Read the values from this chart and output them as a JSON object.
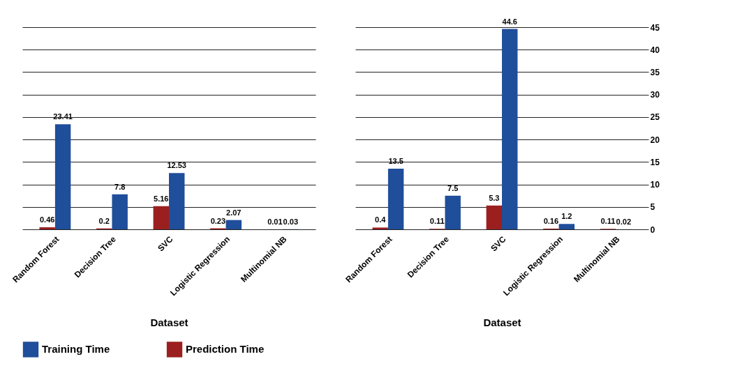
{
  "chart_data": [
    {
      "type": "bar",
      "xlabel": "Dataset",
      "categories": [
        "Random Forest",
        "Decision Tree",
        "SVC",
        "Logistic Regression",
        "Multinomial NB"
      ],
      "series": [
        {
          "name": "Training Time",
          "color": "#1f4e9a",
          "values": [
            23.41,
            7.8,
            12.53,
            2.07,
            0.03
          ]
        },
        {
          "name": "Prediction Time",
          "color": "#9c1f1f",
          "values": [
            0.46,
            0.2,
            5.16,
            0.23,
            0.01
          ]
        }
      ],
      "ylim": [
        0,
        45
      ],
      "yticks": [
        0,
        5,
        10,
        15,
        20,
        25,
        30,
        35,
        40,
        45
      ],
      "grid": "y",
      "legend": "bottom",
      "data_labels": true,
      "tick_labels": "x"
    },
    {
      "type": "bar",
      "xlabel": "Dataset",
      "categories": [
        "Random Forest",
        "Decision Tree",
        "SVC",
        "Logistic Regression",
        "Multinomial NB"
      ],
      "series": [
        {
          "name": "Training Time",
          "color": "#1f4e9a",
          "values": [
            13.5,
            7.5,
            44.6,
            1.2,
            0.02
          ]
        },
        {
          "name": "Prediction Time",
          "color": "#9c1f1f",
          "values": [
            0.4,
            0.11,
            5.3,
            0.16,
            0.11
          ]
        }
      ],
      "ylim": [
        0,
        45
      ],
      "yticks": [
        0,
        5,
        10,
        15,
        20,
        25,
        30,
        35,
        40,
        45
      ],
      "grid": "y",
      "legend": "bottom",
      "data_labels": true
    }
  ]
}
